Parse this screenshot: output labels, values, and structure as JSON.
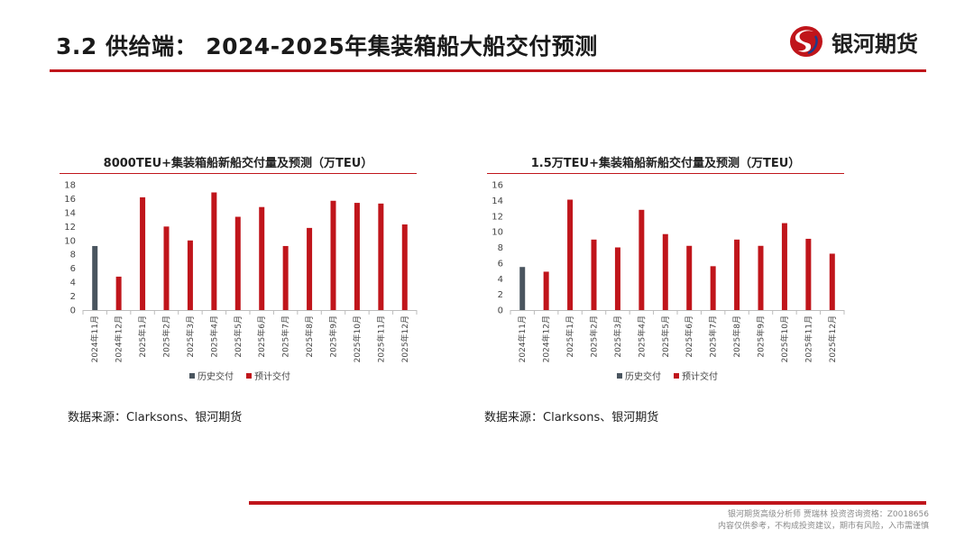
{
  "header": {
    "title": "3.2 供给端： 2024-2025年集装箱船大船交付预测",
    "logo_text": "银河期货"
  },
  "footer": {
    "line1": "银河期货高级分析师 贾瑞林 投资咨询资格：Z0018656",
    "line2": "内容仅供参考，不构成投资建议，期市有风险，入市需谨慎"
  },
  "colors": {
    "accent": "#c0151b",
    "history": "#4a555f",
    "forecast": "#c0151b"
  },
  "chart_data": [
    {
      "type": "bar",
      "title": "8000TEU+集装箱船新船交付量及预测（万TEU）",
      "categories": [
        "2024年11月",
        "2024年12月",
        "2025年1月",
        "2025年2月",
        "2025年3月",
        "2025年4月",
        "2025年5月",
        "2025年6月",
        "2025年7月",
        "2025年8月",
        "2025年9月",
        "2025年10月",
        "2025年11月",
        "2025年12月"
      ],
      "series": [
        {
          "name": "历史交付",
          "values": [
            9.2,
            null,
            null,
            null,
            null,
            null,
            null,
            null,
            null,
            null,
            null,
            null,
            null,
            null
          ]
        },
        {
          "name": "预计交付",
          "values": [
            null,
            4.8,
            16.2,
            12.0,
            10.0,
            16.9,
            13.4,
            14.8,
            9.2,
            11.8,
            15.7,
            15.4,
            15.3,
            12.3
          ]
        }
      ],
      "ylim": [
        0,
        18
      ],
      "yticks": [
        0,
        2,
        4,
        6,
        8,
        10,
        12,
        14,
        16,
        18
      ],
      "legend": "bottom",
      "source": "数据来源：Clarksons、银河期货"
    },
    {
      "type": "bar",
      "title": "1.5万TEU+集装箱船新船交付量及预测（万TEU）",
      "categories": [
        "2024年11月",
        "2024年12月",
        "2025年1月",
        "2025年2月",
        "2025年3月",
        "2025年4月",
        "2025年5月",
        "2025年6月",
        "2025年7月",
        "2025年8月",
        "2025年9月",
        "2025年10月",
        "2025年11月",
        "2025年12月"
      ],
      "series": [
        {
          "name": "历史交付",
          "values": [
            5.5,
            null,
            null,
            null,
            null,
            null,
            null,
            null,
            null,
            null,
            null,
            null,
            null,
            null
          ]
        },
        {
          "name": "预计交付",
          "values": [
            null,
            4.9,
            14.1,
            9.0,
            8.0,
            12.8,
            9.7,
            8.2,
            5.6,
            9.0,
            8.2,
            11.1,
            9.1,
            7.2
          ]
        }
      ],
      "ylim": [
        0,
        16
      ],
      "yticks": [
        0,
        2,
        4,
        6,
        8,
        10,
        12,
        14,
        16
      ],
      "legend": "bottom",
      "source": "数据来源：Clarksons、银河期货"
    }
  ]
}
